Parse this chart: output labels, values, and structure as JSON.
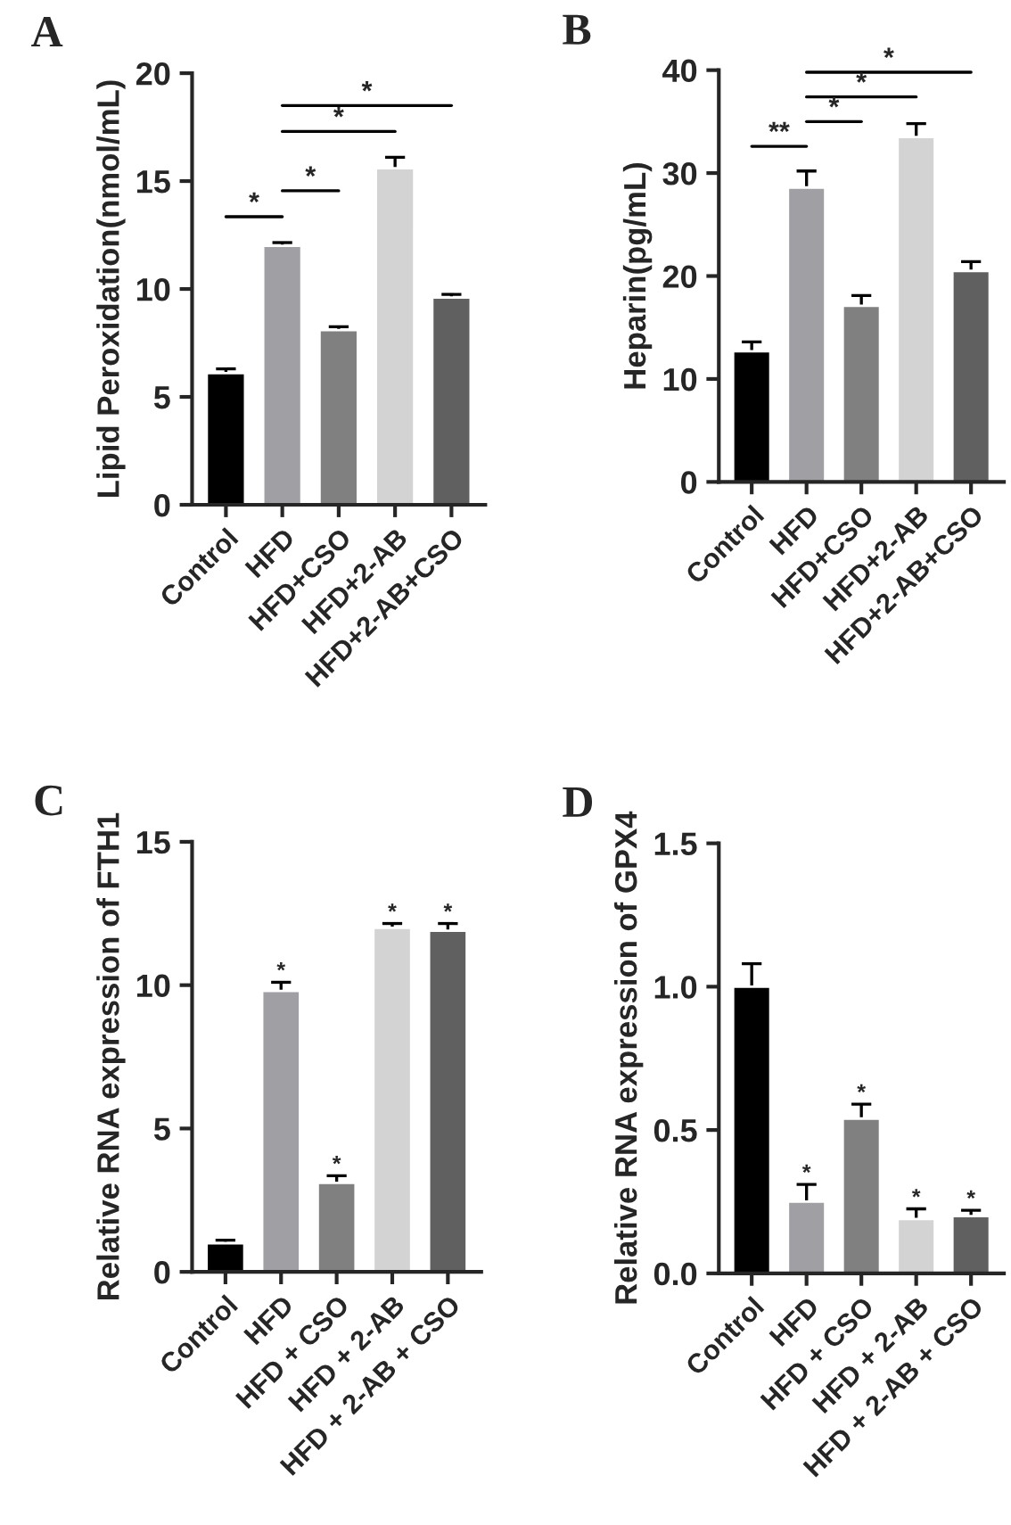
{
  "chart_data": [
    {
      "type": "bar",
      "title": "A",
      "ylabel": "Lipid Peroxidation(nmol/mL)",
      "categories": [
        "Control",
        "HFD",
        "HFD+CSO",
        "HFD+2-AB",
        "HFD+2-AB+CSO"
      ],
      "values": [
        6.1,
        12.0,
        8.1,
        15.6,
        9.6
      ],
      "errors": [
        0.2,
        0.15,
        0.15,
        0.5,
        0.15
      ],
      "colors": [
        "#000000",
        "#a0a0a4",
        "#808080",
        "#d3d3d3",
        "#606060"
      ],
      "ylim": [
        0,
        20
      ],
      "yticks": [
        0,
        5,
        10,
        15,
        20
      ],
      "grid": false,
      "annotations": [
        "*",
        "*",
        "*",
        "*"
      ]
    },
    {
      "type": "bar",
      "title": "B",
      "ylabel": "Heparin(pg/mL)",
      "categories": [
        "Control",
        "HFD",
        "HFD+CSO",
        "HFD+2-AB",
        "HFD+2-AB+CSO"
      ],
      "values": [
        12.7,
        28.6,
        17.1,
        33.5,
        20.5
      ],
      "errors": [
        0.9,
        1.6,
        1.0,
        1.3,
        0.9
      ],
      "colors": [
        "#000000",
        "#a0a0a4",
        "#808080",
        "#d3d3d3",
        "#606060"
      ],
      "ylim": [
        0,
        40
      ],
      "yticks": [
        0,
        10,
        20,
        30,
        40
      ],
      "grid": false,
      "annotations": [
        "**",
        "*",
        "*",
        "*"
      ]
    },
    {
      "type": "bar",
      "title": "C",
      "ylabel": "Relative RNA expression of FTH1",
      "categories": [
        "Control",
        "HFD",
        "HFD + CSO",
        "HFD + 2-AB",
        "HFD + 2-AB + CSO"
      ],
      "values": [
        1.0,
        9.8,
        3.1,
        12.0,
        11.9
      ],
      "errors": [
        0.1,
        0.3,
        0.25,
        0.15,
        0.25
      ],
      "colors": [
        "#000000",
        "#a0a0a4",
        "#808080",
        "#d3d3d3",
        "#606060"
      ],
      "ylim": [
        0,
        15
      ],
      "yticks": [
        0,
        5,
        10,
        15
      ],
      "grid": false,
      "annotations": [
        {
          "text": "*",
          "x": "HFD",
          "y": 10.1
        },
        {
          "text": "*",
          "x": "HFD + CSO",
          "y": 3.35
        },
        {
          "text": "*",
          "x": "HFD + 2-AB",
          "y": 12.15
        },
        {
          "text": "*",
          "x": "HFD + 2-AB + CSO",
          "y": 12.15
        }
      ]
    },
    {
      "type": "bar",
      "title": "D",
      "ylabel": "Relative RNA expression of GPX4",
      "categories": [
        "Control",
        "HFD",
        "HFD + CSO",
        "HFD + 2-AB",
        "HFD + 2-AB + CSO"
      ],
      "values": [
        1.0,
        0.25,
        0.54,
        0.19,
        0.2
      ],
      "errors": [
        0.08,
        0.06,
        0.05,
        0.035,
        0.02
      ],
      "colors": [
        "#000000",
        "#a0a0a4",
        "#808080",
        "#d3d3d3",
        "#606060"
      ],
      "ylim": [
        0,
        1.5
      ],
      "yticks": [
        {
          "value": 0,
          "label": "0.0"
        },
        0.5,
        {
          "value": 1,
          "label": "1.0"
        },
        1.5
      ],
      "grid": false,
      "annotations": [
        {
          "text": "*",
          "x": "HFD",
          "y": 0.31
        },
        {
          "text": "*",
          "x": "HFD + CSO",
          "y": 0.59
        },
        {
          "text": "*",
          "x": "HFD + 2-AB",
          "y": 0.225
        },
        {
          "text": "*",
          "x": "HFD + 2-AB + CSO",
          "y": 0.22
        }
      ]
    }
  ]
}
